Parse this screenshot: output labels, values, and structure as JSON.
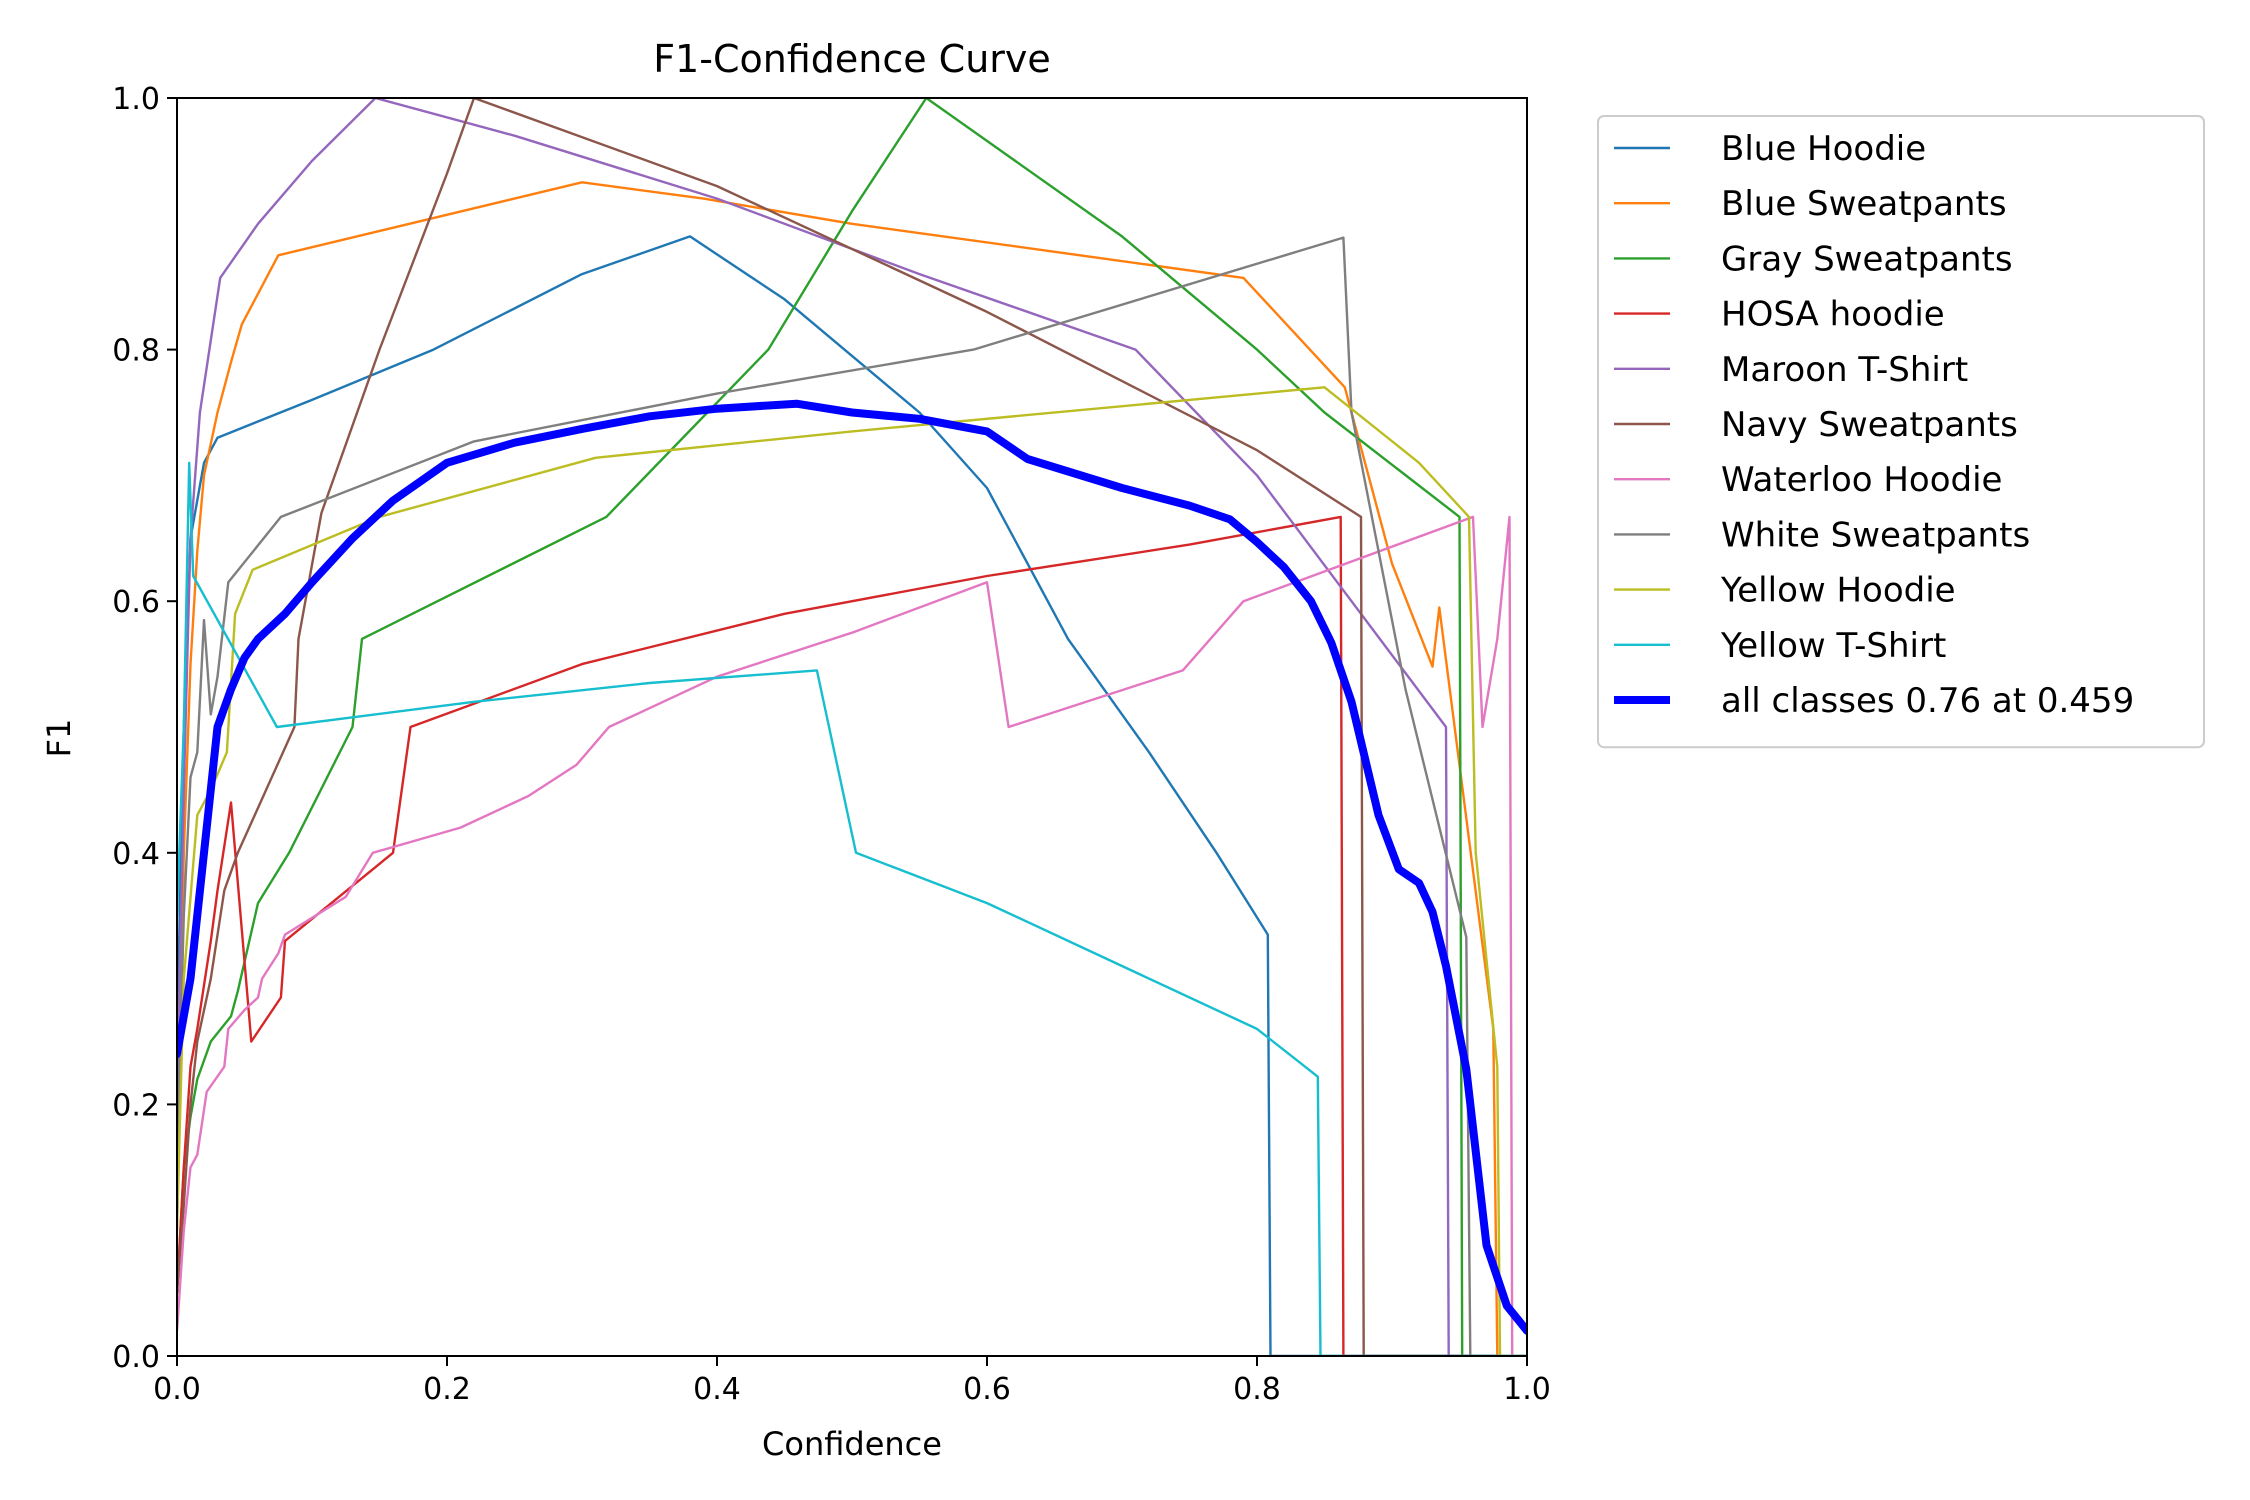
{
  "chart_data": {
    "type": "line",
    "title": "F1-Confidence Curve",
    "xlabel": "Confidence",
    "ylabel": "F1",
    "xlim": [
      0,
      1
    ],
    "ylim": [
      0,
      1
    ],
    "xticks": [
      "0.0",
      "0.2",
      "0.4",
      "0.6",
      "0.8",
      "1.0"
    ],
    "yticks": [
      "0.0",
      "0.2",
      "0.4",
      "0.6",
      "0.8",
      "1.0"
    ],
    "grid": false,
    "legend_position": "outside-upper-right",
    "series": [
      {
        "name": "Blue Hoodie",
        "color": "#1f77b4",
        "points": [
          [
            0.0,
            0.25
          ],
          [
            0.005,
            0.5
          ],
          [
            0.01,
            0.65
          ],
          [
            0.02,
            0.71
          ],
          [
            0.03,
            0.73
          ],
          [
            0.1,
            0.76
          ],
          [
            0.19,
            0.8
          ],
          [
            0.3,
            0.86
          ],
          [
            0.38,
            0.89
          ],
          [
            0.45,
            0.84
          ],
          [
            0.55,
            0.75
          ],
          [
            0.6,
            0.69
          ],
          [
            0.66,
            0.57
          ],
          [
            0.72,
            0.48
          ],
          [
            0.77,
            0.4
          ],
          [
            0.808,
            0.335
          ],
          [
            0.81,
            0.0
          ],
          [
            1.0,
            0.0
          ]
        ]
      },
      {
        "name": "Blue Sweatpants",
        "color": "#ff7f0e",
        "points": [
          [
            0.0,
            0.1
          ],
          [
            0.005,
            0.4
          ],
          [
            0.01,
            0.55
          ],
          [
            0.015,
            0.64
          ],
          [
            0.02,
            0.7
          ],
          [
            0.03,
            0.75
          ],
          [
            0.04,
            0.79
          ],
          [
            0.048,
            0.82
          ],
          [
            0.075,
            0.875
          ],
          [
            0.3,
            0.933
          ],
          [
            0.39,
            0.92
          ],
          [
            0.5,
            0.9
          ],
          [
            0.79,
            0.857
          ],
          [
            0.865,
            0.77
          ],
          [
            0.9,
            0.63
          ],
          [
            0.93,
            0.548
          ],
          [
            0.935,
            0.595
          ],
          [
            0.975,
            0.26
          ],
          [
            0.978,
            0.0
          ],
          [
            1.0,
            0.0
          ]
        ]
      },
      {
        "name": "Gray Sweatpants",
        "color": "#2ca02c",
        "points": [
          [
            0.0,
            0.05
          ],
          [
            0.005,
            0.15
          ],
          [
            0.01,
            0.19
          ],
          [
            0.015,
            0.22
          ],
          [
            0.025,
            0.25
          ],
          [
            0.04,
            0.27
          ],
          [
            0.045,
            0.29
          ],
          [
            0.06,
            0.36
          ],
          [
            0.083,
            0.4
          ],
          [
            0.13,
            0.5
          ],
          [
            0.137,
            0.57
          ],
          [
            0.318,
            0.667
          ],
          [
            0.438,
            0.8
          ],
          [
            0.5,
            0.91
          ],
          [
            0.555,
            1.0
          ],
          [
            0.7,
            0.89
          ],
          [
            0.8,
            0.8
          ],
          [
            0.85,
            0.75
          ],
          [
            0.95,
            0.667
          ],
          [
            0.952,
            0.0
          ],
          [
            1.0,
            0.0
          ]
        ]
      },
      {
        "name": "HOSA hoodie",
        "color": "#d62728",
        "points": [
          [
            0.0,
            0.05
          ],
          [
            0.005,
            0.15
          ],
          [
            0.01,
            0.23
          ],
          [
            0.015,
            0.26
          ],
          [
            0.025,
            0.33
          ],
          [
            0.03,
            0.37
          ],
          [
            0.04,
            0.44
          ],
          [
            0.055,
            0.25
          ],
          [
            0.077,
            0.285
          ],
          [
            0.08,
            0.33
          ],
          [
            0.16,
            0.4
          ],
          [
            0.173,
            0.5
          ],
          [
            0.3,
            0.55
          ],
          [
            0.45,
            0.59
          ],
          [
            0.6,
            0.62
          ],
          [
            0.75,
            0.645
          ],
          [
            0.862,
            0.667
          ],
          [
            0.864,
            0.0
          ],
          [
            1.0,
            0.0
          ]
        ]
      },
      {
        "name": "Maroon T-Shirt",
        "color": "#9467bd",
        "points": [
          [
            0.0,
            0.2
          ],
          [
            0.005,
            0.45
          ],
          [
            0.01,
            0.65
          ],
          [
            0.017,
            0.75
          ],
          [
            0.032,
            0.857
          ],
          [
            0.06,
            0.9
          ],
          [
            0.1,
            0.95
          ],
          [
            0.147,
            1.0
          ],
          [
            0.25,
            0.97
          ],
          [
            0.4,
            0.92
          ],
          [
            0.55,
            0.86
          ],
          [
            0.71,
            0.8
          ],
          [
            0.8,
            0.7
          ],
          [
            0.87,
            0.6
          ],
          [
            0.94,
            0.5
          ],
          [
            0.942,
            0.0
          ],
          [
            1.0,
            0.0
          ]
        ]
      },
      {
        "name": "Navy Sweatpants",
        "color": "#8c564b",
        "points": [
          [
            0.0,
            0.05
          ],
          [
            0.005,
            0.12
          ],
          [
            0.01,
            0.2
          ],
          [
            0.015,
            0.25
          ],
          [
            0.025,
            0.3
          ],
          [
            0.035,
            0.37
          ],
          [
            0.045,
            0.4
          ],
          [
            0.087,
            0.5
          ],
          [
            0.09,
            0.57
          ],
          [
            0.107,
            0.67
          ],
          [
            0.15,
            0.8
          ],
          [
            0.2,
            0.94
          ],
          [
            0.22,
            1.0
          ],
          [
            0.4,
            0.93
          ],
          [
            0.6,
            0.83
          ],
          [
            0.8,
            0.72
          ],
          [
            0.877,
            0.667
          ],
          [
            0.879,
            0.0
          ],
          [
            1.0,
            0.0
          ]
        ]
      },
      {
        "name": "Waterloo Hoodie",
        "color": "#e377c2",
        "points": [
          [
            0.0,
            0.02
          ],
          [
            0.005,
            0.1
          ],
          [
            0.01,
            0.15
          ],
          [
            0.015,
            0.16
          ],
          [
            0.022,
            0.21
          ],
          [
            0.035,
            0.23
          ],
          [
            0.038,
            0.26
          ],
          [
            0.05,
            0.275
          ],
          [
            0.06,
            0.285
          ],
          [
            0.063,
            0.3
          ],
          [
            0.075,
            0.32
          ],
          [
            0.08,
            0.335
          ],
          [
            0.125,
            0.365
          ],
          [
            0.145,
            0.4
          ],
          [
            0.21,
            0.42
          ],
          [
            0.26,
            0.445
          ],
          [
            0.296,
            0.47
          ],
          [
            0.32,
            0.5
          ],
          [
            0.4,
            0.54
          ],
          [
            0.5,
            0.575
          ],
          [
            0.6,
            0.615
          ],
          [
            0.616,
            0.5
          ],
          [
            0.745,
            0.545
          ],
          [
            0.79,
            0.6
          ],
          [
            0.96,
            0.667
          ],
          [
            0.967,
            0.5
          ],
          [
            0.978,
            0.57
          ],
          [
            0.987,
            0.667
          ],
          [
            0.989,
            0.0
          ],
          [
            1.0,
            0.0
          ]
        ]
      },
      {
        "name": "White Sweatpants",
        "color": "#7f7f7f",
        "points": [
          [
            0.0,
            0.15
          ],
          [
            0.005,
            0.35
          ],
          [
            0.01,
            0.46
          ],
          [
            0.015,
            0.48
          ],
          [
            0.02,
            0.585
          ],
          [
            0.025,
            0.51
          ],
          [
            0.03,
            0.54
          ],
          [
            0.038,
            0.615
          ],
          [
            0.077,
            0.667
          ],
          [
            0.22,
            0.727
          ],
          [
            0.4,
            0.765
          ],
          [
            0.59,
            0.8
          ],
          [
            0.864,
            0.889
          ],
          [
            0.87,
            0.75
          ],
          [
            0.91,
            0.53
          ],
          [
            0.955,
            0.333
          ],
          [
            0.958,
            0.0
          ],
          [
            1.0,
            0.0
          ]
        ]
      },
      {
        "name": "Yellow Hoodie",
        "color": "#bcbd22",
        "points": [
          [
            0.0,
            0.1
          ],
          [
            0.005,
            0.3
          ],
          [
            0.015,
            0.43
          ],
          [
            0.025,
            0.45
          ],
          [
            0.037,
            0.48
          ],
          [
            0.043,
            0.59
          ],
          [
            0.056,
            0.625
          ],
          [
            0.15,
            0.667
          ],
          [
            0.31,
            0.714
          ],
          [
            0.5,
            0.735
          ],
          [
            0.85,
            0.77
          ],
          [
            0.92,
            0.71
          ],
          [
            0.957,
            0.667
          ],
          [
            0.962,
            0.4
          ],
          [
            0.978,
            0.23
          ],
          [
            0.98,
            0.0
          ],
          [
            1.0,
            0.0
          ]
        ]
      },
      {
        "name": "Yellow T-Shirt",
        "color": "#17becf",
        "points": [
          [
            0.0,
            0.35
          ],
          [
            0.005,
            0.5
          ],
          [
            0.009,
            0.71
          ],
          [
            0.012,
            0.62
          ],
          [
            0.074,
            0.5
          ],
          [
            0.22,
            0.52
          ],
          [
            0.35,
            0.535
          ],
          [
            0.474,
            0.545
          ],
          [
            0.503,
            0.4
          ],
          [
            0.6,
            0.36
          ],
          [
            0.7,
            0.31
          ],
          [
            0.8,
            0.26
          ],
          [
            0.845,
            0.222
          ],
          [
            0.847,
            0.0
          ],
          [
            1.0,
            0.0
          ]
        ]
      },
      {
        "name": "all classes 0.76 at 0.459",
        "color": "#0000ff",
        "bold": true,
        "points": [
          [
            0.0,
            0.24
          ],
          [
            0.01,
            0.3
          ],
          [
            0.02,
            0.4
          ],
          [
            0.03,
            0.5
          ],
          [
            0.04,
            0.53
          ],
          [
            0.05,
            0.555
          ],
          [
            0.06,
            0.57
          ],
          [
            0.08,
            0.59
          ],
          [
            0.1,
            0.615
          ],
          [
            0.13,
            0.65
          ],
          [
            0.16,
            0.68
          ],
          [
            0.2,
            0.71
          ],
          [
            0.25,
            0.726
          ],
          [
            0.3,
            0.737
          ],
          [
            0.35,
            0.747
          ],
          [
            0.4,
            0.753
          ],
          [
            0.459,
            0.757
          ],
          [
            0.5,
            0.75
          ],
          [
            0.55,
            0.745
          ],
          [
            0.6,
            0.735
          ],
          [
            0.63,
            0.713
          ],
          [
            0.7,
            0.69
          ],
          [
            0.75,
            0.676
          ],
          [
            0.78,
            0.665
          ],
          [
            0.8,
            0.647
          ],
          [
            0.82,
            0.627
          ],
          [
            0.84,
            0.6
          ],
          [
            0.855,
            0.567
          ],
          [
            0.87,
            0.52
          ],
          [
            0.89,
            0.43
          ],
          [
            0.905,
            0.387
          ],
          [
            0.92,
            0.376
          ],
          [
            0.93,
            0.353
          ],
          [
            0.94,
            0.31
          ],
          [
            0.955,
            0.228
          ],
          [
            0.97,
            0.088
          ],
          [
            0.985,
            0.04
          ],
          [
            1.0,
            0.02
          ]
        ]
      }
    ]
  }
}
